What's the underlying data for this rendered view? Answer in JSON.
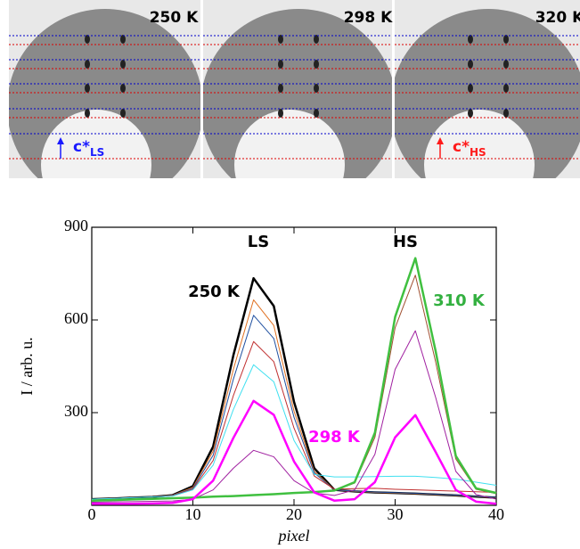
{
  "panel_a": {
    "images": [
      {
        "label": "250 K"
      },
      {
        "label": "298 K"
      },
      {
        "label": "320 K"
      }
    ],
    "ls_axis": {
      "main": "c*",
      "sub": "LS",
      "color": "#1a1aff"
    },
    "hs_axis": {
      "main": "c*",
      "sub": "HS",
      "color": "#ff1a1a"
    }
  },
  "chart_data": {
    "type": "line",
    "xlabel": "pixel",
    "ylabel": "I / arb. u.",
    "xlim": [
      0,
      40
    ],
    "xticks": [
      0,
      10,
      20,
      30,
      40
    ],
    "ylim": [
      0,
      900
    ],
    "yticks": [
      300,
      600,
      900
    ],
    "grid": false,
    "annotations": [
      {
        "text": "LS",
        "color": "#000000"
      },
      {
        "text": "HS",
        "color": "#000000"
      },
      {
        "text": "250 K",
        "color": "#000000"
      },
      {
        "text": "310 K",
        "color": "#33b040"
      },
      {
        "text": "298 K",
        "color": "#ff00ff"
      }
    ],
    "x": [
      0,
      2,
      4,
      6,
      8,
      10,
      12,
      14,
      16,
      18,
      20,
      22,
      24,
      26,
      28,
      30,
      32,
      34,
      36,
      38,
      40
    ],
    "series": [
      {
        "color": "#000000",
        "width": 2.5,
        "values": [
          20,
          22,
          25,
          27,
          33,
          62,
          190,
          485,
          735,
          645,
          335,
          120,
          50,
          45,
          42,
          40,
          38,
          35,
          32,
          28,
          25
        ]
      },
      {
        "color": "#e07020",
        "width": 1,
        "values": [
          20,
          22,
          25,
          27,
          33,
          58,
          175,
          440,
          665,
          582,
          305,
          110,
          50,
          45,
          42,
          40,
          38,
          35,
          32,
          28,
          25
        ]
      },
      {
        "color": "#2050a0",
        "width": 1,
        "values": [
          20,
          22,
          25,
          27,
          32,
          55,
          162,
          408,
          615,
          540,
          285,
          105,
          50,
          46,
          43,
          41,
          39,
          36,
          33,
          29,
          26
        ]
      },
      {
        "color": "#c03030",
        "width": 1,
        "values": [
          20,
          22,
          25,
          27,
          31,
          52,
          145,
          355,
          530,
          465,
          250,
          95,
          52,
          54,
          55,
          52,
          50,
          48,
          46,
          44,
          42
        ]
      },
      {
        "color": "#40e0f0",
        "width": 1,
        "values": [
          20,
          22,
          25,
          27,
          30,
          50,
          130,
          310,
          455,
          400,
          210,
          100,
          92,
          92,
          93,
          94,
          94,
          90,
          85,
          75,
          65
        ]
      },
      {
        "color": "#a020a0",
        "width": 1,
        "values": [
          10,
          11,
          12,
          13,
          14,
          20,
          50,
          120,
          178,
          157,
          80,
          40,
          32,
          50,
          165,
          440,
          565,
          350,
          110,
          35,
          20
        ]
      },
      {
        "color": "#a05030",
        "width": 1,
        "values": [
          15,
          17,
          19,
          21,
          23,
          25,
          28,
          30,
          33,
          36,
          40,
          43,
          48,
          72,
          220,
          575,
          745,
          465,
          150,
          52,
          38
        ]
      },
      {
        "color": "#40c040",
        "width": 2.5,
        "values": [
          15,
          17,
          19,
          21,
          23,
          25,
          28,
          30,
          33,
          36,
          40,
          43,
          48,
          75,
          235,
          610,
          800,
          500,
          160,
          55,
          40
        ]
      },
      {
        "color": "#ff00ff",
        "width": 2.5,
        "values": [
          5,
          5,
          5,
          6,
          8,
          20,
          80,
          218,
          338,
          293,
          142,
          42,
          15,
          20,
          75,
          220,
          292,
          173,
          50,
          12,
          5
        ]
      }
    ]
  }
}
